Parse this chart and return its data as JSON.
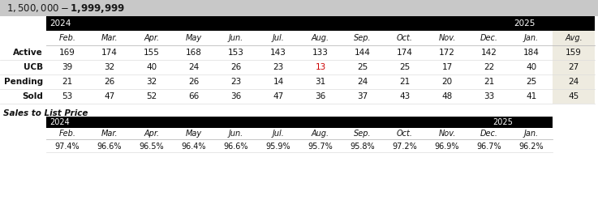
{
  "title": "$1,500,000 - $1,999,999",
  "title_bg": "#c8c8c8",
  "header_bg": "#000000",
  "avg_bg": "#eeebe0",
  "row_labels": [
    "Active",
    "UCB",
    "Pending",
    "Sold"
  ],
  "months": [
    "Feb.",
    "Mar.",
    "Apr.",
    "May",
    "Jun.",
    "Jul.",
    "Aug.",
    "Sep.",
    "Oct.",
    "Nov.",
    "Dec.",
    "Jan.",
    "Avg."
  ],
  "data": {
    "Active": [
      169,
      174,
      155,
      168,
      153,
      143,
      133,
      144,
      174,
      172,
      142,
      184,
      159
    ],
    "UCB": [
      39,
      32,
      40,
      24,
      26,
      23,
      13,
      25,
      25,
      17,
      22,
      40,
      27
    ],
    "Pending": [
      21,
      26,
      32,
      26,
      23,
      14,
      31,
      24,
      21,
      20,
      21,
      25,
      24
    ],
    "Sold": [
      53,
      47,
      52,
      66,
      36,
      47,
      36,
      37,
      43,
      48,
      33,
      41,
      45
    ]
  },
  "highlight_row": "UCB",
  "highlight_val": 13,
  "highlight_color": "#cc0000",
  "year_2024_label": "2024",
  "year_2025_label": "2025",
  "sales_title": "Sales to List Price",
  "sales_months": [
    "Feb.",
    "Mar.",
    "Apr.",
    "May",
    "Jun.",
    "Jul.",
    "Aug.",
    "Sep.",
    "Oct.",
    "Nov.",
    "Dec.",
    "Jan."
  ],
  "sales_data": [
    "97.4%",
    "96.6%",
    "96.5%",
    "96.4%",
    "96.6%",
    "95.9%",
    "95.7%",
    "95.8%",
    "97.2%",
    "96.9%",
    "96.7%",
    "96.2%"
  ]
}
